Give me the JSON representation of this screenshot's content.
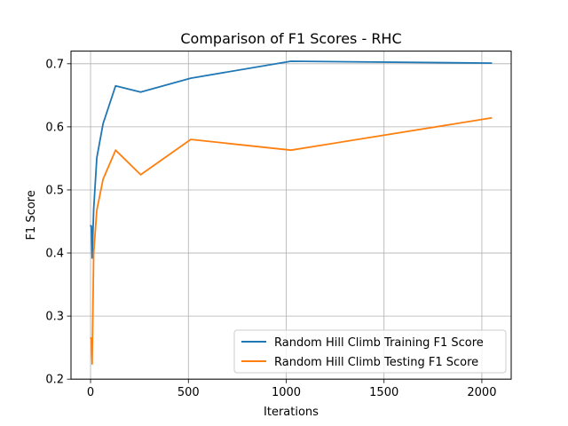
{
  "chart_data": {
    "type": "line",
    "title": "Comparison of F1 Scores - RHC",
    "xlabel": "Iterations",
    "ylabel": "F1 Score",
    "xlim": [
      -100,
      2150
    ],
    "ylim": [
      0.2,
      0.72
    ],
    "xticks": [
      0,
      500,
      1000,
      1500,
      2000
    ],
    "yticks": [
      0.2,
      0.3,
      0.4,
      0.5,
      0.6,
      0.7
    ],
    "xtick_labels": [
      "0",
      "500",
      "1000",
      "1500",
      "2000"
    ],
    "ytick_labels": [
      "0.2",
      "0.3",
      "0.4",
      "0.5",
      "0.6",
      "0.7"
    ],
    "grid": true,
    "legend_position": "lower-right",
    "x": [
      1,
      2,
      4,
      8,
      16,
      32,
      64,
      128,
      256,
      512,
      1024,
      2048
    ],
    "series": [
      {
        "name": "Random Hill Climb Training F1 Score",
        "color": "#1f77b4",
        "values": [
          0.443,
          0.443,
          0.443,
          0.392,
          0.47,
          0.551,
          0.605,
          0.665,
          0.655,
          0.677,
          0.704,
          0.701
        ]
      },
      {
        "name": "Random Hill Climb Testing F1 Score",
        "color": "#ff7f0e",
        "values": [
          0.265,
          0.265,
          0.265,
          0.224,
          0.4,
          0.468,
          0.517,
          0.563,
          0.524,
          0.58,
          0.563,
          0.614
        ]
      }
    ]
  }
}
